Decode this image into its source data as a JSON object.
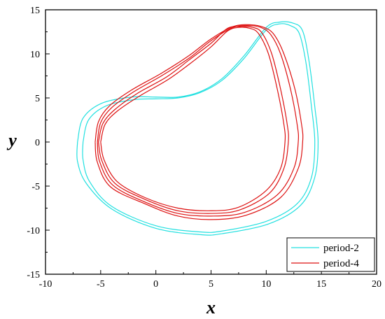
{
  "chart_data": {
    "type": "line",
    "xlabel": "x",
    "ylabel": "y",
    "xlim": [
      -10,
      20
    ],
    "ylim": [
      -15,
      15
    ],
    "x_ticks": [
      -10,
      -5,
      0,
      5,
      10,
      15,
      20
    ],
    "y_ticks": [
      -15,
      -10,
      -5,
      0,
      5,
      10,
      15
    ],
    "x_tick_labels": [
      "-10",
      "-5",
      "0",
      "5",
      "10",
      "15",
      "20"
    ],
    "y_tick_labels": [
      "-15",
      "-10",
      "-5",
      "0",
      "5",
      "10",
      "15"
    ],
    "grid": false,
    "legend_position": "bottom-right",
    "series": [
      {
        "name": "period-2",
        "color": "#22e0e0",
        "loops": [
          [
            [
              -6.6,
              0
            ],
            [
              -6.1,
              2.5
            ],
            [
              -4.5,
              4.1
            ],
            [
              -2,
              4.8
            ],
            [
              0,
              4.9
            ],
            [
              2,
              5
            ],
            [
              4,
              5.6
            ],
            [
              6,
              7
            ],
            [
              8,
              9.5
            ],
            [
              10,
              12.7
            ],
            [
              11.2,
              13.4
            ],
            [
              12.2,
              13.2
            ],
            [
              13,
              12.3
            ],
            [
              13.6,
              9
            ],
            [
              14.1,
              4
            ],
            [
              14.4,
              0
            ],
            [
              14.1,
              -4
            ],
            [
              12.8,
              -7
            ],
            [
              10,
              -9
            ],
            [
              6,
              -10.1
            ],
            [
              4,
              -10.2
            ],
            [
              0,
              -9.5
            ],
            [
              -4,
              -7.3
            ],
            [
              -6,
              -4.5
            ],
            [
              -6.6,
              -2
            ],
            [
              -6.6,
              0
            ]
          ],
          [
            [
              -7.1,
              0
            ],
            [
              -6.6,
              2.7
            ],
            [
              -4.9,
              4.4
            ],
            [
              -2.2,
              5.1
            ],
            [
              0,
              5.1
            ],
            [
              2,
              5.1
            ],
            [
              4,
              5.7
            ],
            [
              6,
              7.2
            ],
            [
              8,
              9.8
            ],
            [
              10,
              13
            ],
            [
              11.2,
              13.6
            ],
            [
              12.4,
              13.5
            ],
            [
              13.3,
              12.6
            ],
            [
              13.9,
              9
            ],
            [
              14.4,
              4
            ],
            [
              14.7,
              0
            ],
            [
              14.4,
              -4
            ],
            [
              13.1,
              -7.2
            ],
            [
              10.2,
              -9.3
            ],
            [
              6,
              -10.4
            ],
            [
              4,
              -10.5
            ],
            [
              0,
              -9.8
            ],
            [
              -4,
              -7.6
            ],
            [
              -6.3,
              -4.7
            ],
            [
              -7.1,
              -2.2
            ],
            [
              -7.1,
              0
            ]
          ]
        ]
      },
      {
        "name": "period-4",
        "color": "#dd1111",
        "loops": [
          [
            [
              -5,
              0
            ],
            [
              -4.6,
              2
            ],
            [
              -3.5,
              3.5
            ],
            [
              -1.5,
              5.2
            ],
            [
              1,
              7
            ],
            [
              3,
              8.8
            ],
            [
              5,
              10.8
            ],
            [
              6.5,
              12.6
            ],
            [
              7.5,
              13
            ],
            [
              8.5,
              12.9
            ],
            [
              9.3,
              12.3
            ],
            [
              10.2,
              10
            ],
            [
              11,
              6
            ],
            [
              11.6,
              2
            ],
            [
              11.7,
              0
            ],
            [
              11.3,
              -3
            ],
            [
              10,
              -5.5
            ],
            [
              7.5,
              -7.4
            ],
            [
              5,
              -7.8
            ],
            [
              2,
              -7.5
            ],
            [
              -1,
              -6.3
            ],
            [
              -3.5,
              -4.5
            ],
            [
              -4.7,
              -2
            ],
            [
              -5,
              0
            ]
          ],
          [
            [
              -5.2,
              0
            ],
            [
              -4.8,
              2.1
            ],
            [
              -3.7,
              3.7
            ],
            [
              -1.7,
              5.5
            ],
            [
              1,
              7.4
            ],
            [
              3,
              9.3
            ],
            [
              5,
              11.2
            ],
            [
              6.5,
              12.9
            ],
            [
              7.8,
              13.1
            ],
            [
              8.8,
              13
            ],
            [
              9.6,
              12.4
            ],
            [
              10.5,
              10
            ],
            [
              11.3,
              6
            ],
            [
              11.9,
              2
            ],
            [
              12,
              0
            ],
            [
              11.6,
              -3
            ],
            [
              10.3,
              -5.8
            ],
            [
              7.6,
              -7.7
            ],
            [
              5,
              -8.1
            ],
            [
              2,
              -7.8
            ],
            [
              -1,
              -6.5
            ],
            [
              -3.7,
              -4.7
            ],
            [
              -4.9,
              -2.1
            ],
            [
              -5.2,
              0
            ]
          ],
          [
            [
              -5.3,
              0
            ],
            [
              -5,
              2.2
            ],
            [
              -4,
              3.9
            ],
            [
              -2,
              5.7
            ],
            [
              0.5,
              7.5
            ],
            [
              3,
              9.5
            ],
            [
              5,
              11.5
            ],
            [
              7,
              13
            ],
            [
              8.5,
              13.2
            ],
            [
              9.5,
              13
            ],
            [
              10.4,
              12.2
            ],
            [
              11.3,
              10
            ],
            [
              12.2,
              6
            ],
            [
              12.8,
              2
            ],
            [
              12.9,
              0
            ],
            [
              12.5,
              -3
            ],
            [
              11,
              -6
            ],
            [
              8,
              -8
            ],
            [
              5,
              -8.4
            ],
            [
              2,
              -8.1
            ],
            [
              -1,
              -6.8
            ],
            [
              -3.9,
              -4.9
            ],
            [
              -5.1,
              -2.2
            ],
            [
              -5.3,
              0
            ]
          ],
          [
            [
              -5.5,
              0
            ],
            [
              -5.2,
              2.3
            ],
            [
              -4.2,
              4.1
            ],
            [
              -2.2,
              5.9
            ],
            [
              0.5,
              7.8
            ],
            [
              3,
              9.8
            ],
            [
              5,
              11.7
            ],
            [
              7,
              13.1
            ],
            [
              8.6,
              13.3
            ],
            [
              9.8,
              13
            ],
            [
              10.7,
              12.2
            ],
            [
              11.6,
              10
            ],
            [
              12.6,
              6
            ],
            [
              13.2,
              2
            ],
            [
              13.3,
              0
            ],
            [
              12.9,
              -3
            ],
            [
              11.3,
              -6.3
            ],
            [
              8.2,
              -8.3
            ],
            [
              5,
              -8.8
            ],
            [
              2,
              -8.4
            ],
            [
              -1,
              -7
            ],
            [
              -4.1,
              -5.1
            ],
            [
              -5.3,
              -2.3
            ],
            [
              -5.5,
              0
            ]
          ]
        ]
      }
    ]
  }
}
